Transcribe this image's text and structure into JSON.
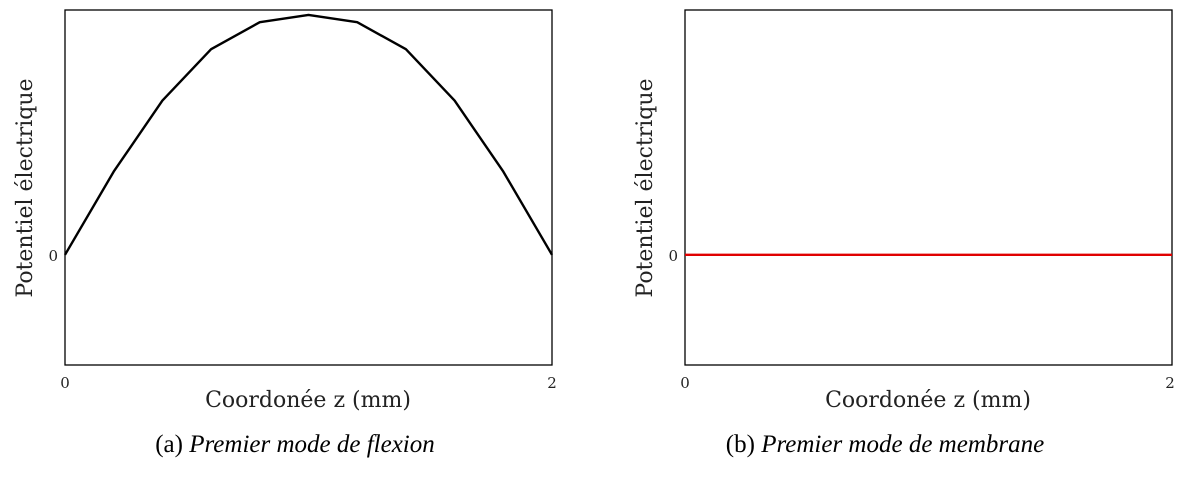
{
  "chart_data": [
    {
      "type": "line",
      "xlabel": "Coordonée z (mm)",
      "ylabel": "Potentiel électrique",
      "xlim": [
        0,
        2
      ],
      "ylim": [
        -0.45,
        1.0
      ],
      "x_ticks": [
        "0",
        "2"
      ],
      "y_ticks": [
        {
          "value": 0,
          "label": "0"
        }
      ],
      "grid": false,
      "series": [
        {
          "color": "#000000",
          "x": [
            0,
            0.2,
            0.4,
            0.6,
            0.8,
            1.0,
            1.2,
            1.4,
            1.6,
            1.8,
            2.0
          ],
          "y": [
            0,
            0.34,
            0.63,
            0.84,
            0.95,
            0.98,
            0.95,
            0.84,
            0.63,
            0.34,
            0
          ]
        }
      ],
      "caption_prefix": "(a)",
      "caption_text": "Premier mode de flexion"
    },
    {
      "type": "line",
      "xlabel": "Coordonée z (mm)",
      "ylabel": "Potentiel électrique",
      "xlim": [
        0,
        2
      ],
      "ylim": [
        -0.45,
        1.0
      ],
      "x_ticks": [
        "0",
        "2"
      ],
      "y_ticks": [
        {
          "value": 0,
          "label": "0"
        }
      ],
      "grid": false,
      "series": [
        {
          "color": "#e00000",
          "x": [
            0,
            2
          ],
          "y": [
            0,
            0
          ]
        }
      ],
      "caption_prefix": "(b)",
      "caption_text": "Premier mode de membrane"
    }
  ]
}
